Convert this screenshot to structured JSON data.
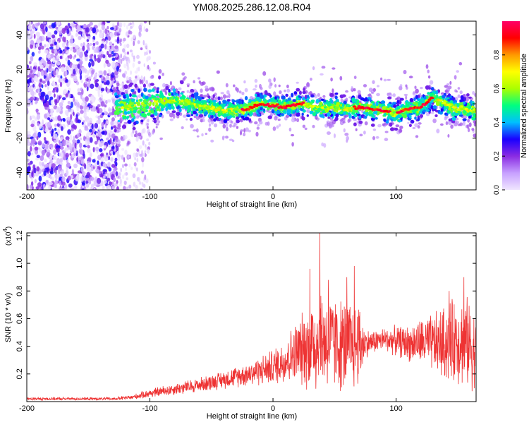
{
  "figure_title": "YM08.2025.286.12.08.R04",
  "chart_data": [
    {
      "type": "heatmap",
      "title": "YM08.2025.286.12.08.R04",
      "xlabel": "Height of straight line (km)",
      "ylabel": "Frequency (Hz)",
      "xlim": [
        -200,
        165
      ],
      "ylim": [
        -50,
        48
      ],
      "xticks": [
        -200,
        -100,
        0,
        100
      ],
      "yticks": [
        40,
        20,
        0,
        -20,
        -40
      ],
      "colorbar": {
        "label": "Normalized spectral amplitude",
        "range": [
          0.0,
          1.0
        ],
        "ticks": [
          0.0,
          0.2,
          0.4,
          0.6,
          0.8
        ],
        "colormap": [
          "#f0e6ff",
          "#c7a0ff",
          "#8a2be2",
          "#1a00ff",
          "#00bfff",
          "#00ff80",
          "#aaff00",
          "#ffff00",
          "#ff9900",
          "#ff0000",
          "#ff0066"
        ]
      },
      "ridge": {
        "description": "dominant frequency trace",
        "points": [
          [
            -125,
            -3
          ],
          [
            -100,
            0
          ],
          [
            -80,
            2
          ],
          [
            -60,
            -1
          ],
          [
            -40,
            -4
          ],
          [
            -20,
            -3
          ],
          [
            -10,
            0
          ],
          [
            0,
            -1
          ],
          [
            10,
            -2
          ],
          [
            20,
            0
          ],
          [
            30,
            -1
          ],
          [
            40,
            -3
          ],
          [
            50,
            -2
          ],
          [
            60,
            -3
          ],
          [
            70,
            -2
          ],
          [
            80,
            -3
          ],
          [
            90,
            -4
          ],
          [
            100,
            -6
          ],
          [
            110,
            -3
          ],
          [
            120,
            -2
          ],
          [
            130,
            4
          ],
          [
            140,
            0
          ],
          [
            150,
            -3
          ],
          [
            165,
            -4
          ]
        ]
      },
      "noise_region": [
        -200,
        -125
      ],
      "noise_sparse_region": [
        -125,
        -100
      ]
    },
    {
      "type": "line",
      "xlabel": "Height of straight line (km)",
      "ylabel": "SNR (10 * v/v)",
      "y_exponent_label": "(x10",
      "y_exponent": "4",
      "y_exponent_close": ")",
      "xlim": [
        -200,
        165
      ],
      "ylim": [
        0.0,
        1.22
      ],
      "xticks": [
        -200,
        -100,
        0,
        100
      ],
      "yticks": [
        0.2,
        0.4,
        0.6,
        0.8,
        1.0,
        1.2
      ],
      "yticklabels": [
        "0.2",
        "0.4",
        "0.6",
        "0.8",
        "1.0",
        "1.2"
      ],
      "color": "#ee3333",
      "envelope": {
        "description": "approximate mean level and spread of the noisy SNR trace",
        "x": [
          -200,
          -130,
          -115,
          -100,
          -80,
          -60,
          -40,
          -20,
          0,
          10,
          20,
          30,
          35,
          40,
          50,
          60,
          70,
          75,
          80,
          90,
          100,
          110,
          120,
          130,
          140,
          150,
          160,
          165
        ],
        "mean": [
          0.02,
          0.02,
          0.03,
          0.06,
          0.09,
          0.12,
          0.16,
          0.2,
          0.25,
          0.3,
          0.36,
          0.4,
          0.44,
          0.45,
          0.42,
          0.4,
          0.42,
          0.42,
          0.43,
          0.45,
          0.44,
          0.42,
          0.43,
          0.42,
          0.42,
          0.45,
          0.42,
          0.35
        ],
        "spread": [
          0.01,
          0.01,
          0.015,
          0.03,
          0.04,
          0.05,
          0.06,
          0.08,
          0.12,
          0.16,
          0.22,
          0.3,
          0.38,
          0.35,
          0.32,
          0.32,
          0.3,
          0.1,
          0.08,
          0.08,
          0.1,
          0.12,
          0.16,
          0.2,
          0.26,
          0.3,
          0.3,
          0.25
        ]
      },
      "peaks": [
        [
          30,
          0.96
        ],
        [
          38,
          1.22
        ],
        [
          45,
          0.88
        ],
        [
          60,
          0.9
        ],
        [
          66,
          0.98
        ],
        [
          143,
          0.8
        ],
        [
          155,
          0.9
        ]
      ]
    }
  ]
}
